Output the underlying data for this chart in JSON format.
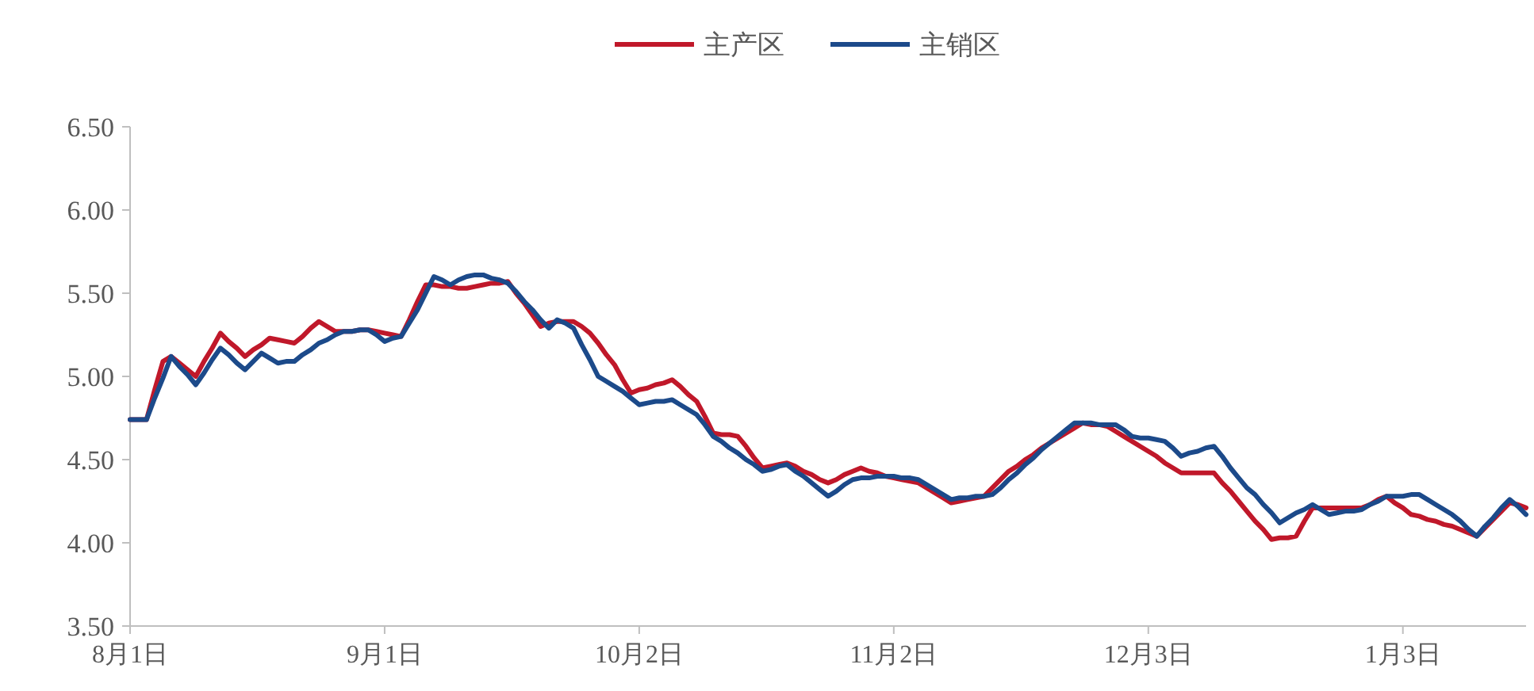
{
  "chart_data": {
    "type": "line",
    "legend": "top",
    "grid": false,
    "marker": "none",
    "line_style": "solid",
    "categories": [
      "8月1日",
      null,
      null,
      null,
      null,
      null,
      null,
      null,
      null,
      null,
      null,
      null,
      null,
      null,
      null,
      null,
      null,
      null,
      null,
      null,
      null,
      null,
      null,
      null,
      null,
      null,
      null,
      null,
      null,
      null,
      null,
      "9月1日",
      null,
      null,
      null,
      null,
      null,
      null,
      null,
      null,
      null,
      null,
      null,
      null,
      null,
      null,
      null,
      null,
      null,
      null,
      null,
      null,
      null,
      null,
      null,
      null,
      null,
      null,
      null,
      null,
      null,
      null,
      "10月2日",
      null,
      null,
      null,
      null,
      null,
      null,
      null,
      null,
      null,
      null,
      null,
      null,
      null,
      null,
      null,
      null,
      null,
      null,
      null,
      null,
      null,
      null,
      null,
      null,
      null,
      null,
      null,
      null,
      null,
      null,
      "11月2日",
      null,
      null,
      null,
      null,
      null,
      null,
      null,
      null,
      null,
      null,
      null,
      null,
      null,
      null,
      null,
      null,
      null,
      null,
      null,
      null,
      null,
      null,
      null,
      null,
      null,
      null,
      null,
      null,
      null,
      null,
      "12月3日",
      null,
      null,
      null,
      null,
      null,
      null,
      null,
      null,
      null,
      null,
      null,
      null,
      null,
      null,
      null,
      null,
      null,
      null,
      null,
      null,
      null,
      null,
      null,
      null,
      null,
      null,
      null,
      null,
      null,
      null,
      "1月3日",
      null,
      null,
      null,
      null,
      null,
      null,
      null,
      null,
      null,
      null,
      null,
      null,
      null,
      null,
      null
    ],
    "ylim": [
      3.5,
      6.5
    ],
    "yticks": [
      {
        "value": 3.5,
        "label": "3.50"
      },
      {
        "value": 4,
        "label": "4.00"
      },
      {
        "value": 4.5,
        "label": "4.50"
      },
      {
        "value": 5,
        "label": "5.00"
      },
      {
        "value": 5.5,
        "label": "5.50"
      },
      {
        "value": 6,
        "label": "6.00"
      },
      {
        "value": 6.5,
        "label": "6.50"
      }
    ],
    "series": [
      {
        "name": "主产区",
        "color": "#c0182a",
        "values": [
          4.74,
          4.74,
          4.74,
          4.92,
          5.09,
          5.12,
          5.08,
          5.04,
          5.0,
          5.09,
          5.17,
          5.26,
          5.21,
          5.17,
          5.12,
          5.16,
          5.19,
          5.23,
          5.22,
          5.21,
          5.2,
          5.24,
          5.29,
          5.33,
          5.3,
          5.27,
          5.27,
          5.27,
          5.28,
          5.28,
          5.27,
          5.26,
          5.25,
          5.24,
          5.34,
          5.45,
          5.55,
          5.55,
          5.54,
          5.54,
          5.53,
          5.53,
          5.54,
          5.55,
          5.56,
          5.56,
          5.57,
          5.5,
          5.44,
          5.37,
          5.3,
          5.32,
          5.33,
          5.33,
          5.33,
          5.3,
          5.26,
          5.2,
          5.13,
          5.07,
          4.98,
          4.9,
          4.92,
          4.93,
          4.95,
          4.96,
          4.98,
          4.94,
          4.89,
          4.85,
          4.76,
          4.66,
          4.65,
          4.65,
          4.64,
          4.58,
          4.51,
          4.45,
          4.46,
          4.47,
          4.48,
          4.46,
          4.43,
          4.41,
          4.38,
          4.36,
          4.38,
          4.41,
          4.43,
          4.45,
          4.43,
          4.42,
          4.4,
          4.39,
          4.38,
          4.37,
          4.36,
          4.33,
          4.3,
          4.27,
          4.24,
          4.25,
          4.26,
          4.27,
          4.28,
          4.33,
          4.38,
          4.43,
          4.46,
          4.5,
          4.53,
          4.57,
          4.6,
          4.63,
          4.66,
          4.69,
          4.72,
          4.71,
          4.71,
          4.7,
          4.67,
          4.64,
          4.61,
          4.58,
          4.55,
          4.52,
          4.48,
          4.45,
          4.42,
          4.42,
          4.42,
          4.42,
          4.42,
          4.36,
          4.31,
          4.25,
          4.19,
          4.13,
          4.08,
          4.02,
          4.03,
          4.03,
          4.04,
          4.13,
          4.21,
          4.21,
          4.21,
          4.21,
          4.21,
          4.21,
          4.21,
          4.23,
          4.26,
          4.28,
          4.24,
          4.21,
          4.17,
          4.16,
          4.14,
          4.13,
          4.11,
          4.1,
          4.08,
          4.06,
          4.04,
          4.09,
          4.14,
          4.19,
          4.24,
          4.23,
          4.21
        ]
      },
      {
        "name": "主销区",
        "color": "#1c4a8a",
        "values": [
          4.74,
          4.74,
          4.74,
          4.87,
          4.99,
          5.12,
          5.06,
          5.01,
          4.95,
          5.02,
          5.1,
          5.17,
          5.13,
          5.08,
          5.04,
          5.09,
          5.14,
          5.11,
          5.08,
          5.09,
          5.09,
          5.13,
          5.16,
          5.2,
          5.22,
          5.25,
          5.27,
          5.27,
          5.28,
          5.28,
          5.25,
          5.21,
          5.23,
          5.24,
          5.32,
          5.4,
          5.5,
          5.6,
          5.58,
          5.55,
          5.58,
          5.6,
          5.61,
          5.61,
          5.59,
          5.58,
          5.56,
          5.51,
          5.45,
          5.4,
          5.34,
          5.29,
          5.34,
          5.32,
          5.29,
          5.19,
          5.1,
          5.0,
          4.97,
          4.94,
          4.91,
          4.87,
          4.83,
          4.84,
          4.85,
          4.85,
          4.86,
          4.83,
          4.8,
          4.77,
          4.71,
          4.64,
          4.61,
          4.57,
          4.54,
          4.5,
          4.47,
          4.43,
          4.44,
          4.46,
          4.47,
          4.43,
          4.4,
          4.36,
          4.32,
          4.28,
          4.31,
          4.35,
          4.38,
          4.39,
          4.39,
          4.4,
          4.4,
          4.4,
          4.39,
          4.39,
          4.38,
          4.35,
          4.32,
          4.29,
          4.26,
          4.27,
          4.27,
          4.28,
          4.28,
          4.29,
          4.33,
          4.38,
          4.42,
          4.47,
          4.51,
          4.56,
          4.6,
          4.64,
          4.68,
          4.72,
          4.72,
          4.72,
          4.71,
          4.71,
          4.71,
          4.68,
          4.64,
          4.63,
          4.63,
          4.62,
          4.61,
          4.57,
          4.52,
          4.54,
          4.55,
          4.57,
          4.58,
          4.52,
          4.45,
          4.39,
          4.33,
          4.29,
          4.23,
          4.18,
          4.12,
          4.15,
          4.18,
          4.2,
          4.23,
          4.2,
          4.17,
          4.18,
          4.19,
          4.19,
          4.2,
          4.23,
          4.25,
          4.28,
          4.28,
          4.28,
          4.29,
          4.29,
          4.26,
          4.23,
          4.2,
          4.17,
          4.13,
          4.08,
          4.04,
          4.1,
          4.15,
          4.21,
          4.26,
          4.22,
          4.17
        ]
      }
    ]
  }
}
